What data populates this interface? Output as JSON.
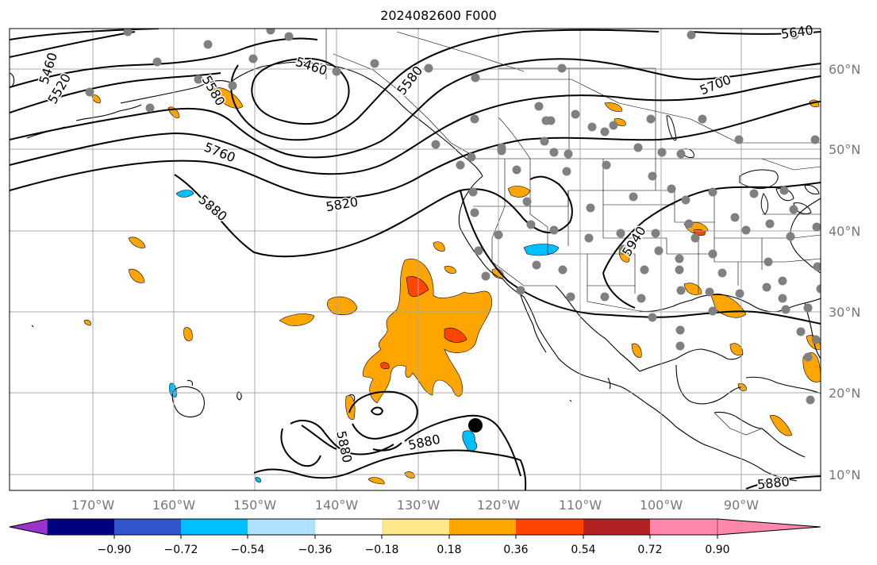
{
  "title": "2024082600 F000",
  "lon_labels": [
    "170°W",
    "160°W",
    "150°W",
    "140°W",
    "130°W",
    "120°W",
    "110°W",
    "100°W",
    "90°W"
  ],
  "lat_labels": [
    "60°N",
    "50°N",
    "40°N",
    "30°N",
    "20°N",
    "10°N"
  ],
  "contour_labels": [
    "5460",
    "5520",
    "5580",
    "5640",
    "5700",
    "5760",
    "5820",
    "5880",
    "5940"
  ],
  "colorbar": {
    "ticks": [
      "−0.90",
      "−0.72",
      "−0.54",
      "−0.36",
      "−0.18",
      "0.18",
      "0.36",
      "0.54",
      "0.72",
      "0.90"
    ],
    "colors": [
      "#9933cc",
      "#000080",
      "#3355cc",
      "#00bfff",
      "#aee1ff",
      "#ffffff",
      "#ffe88a",
      "#ffa500",
      "#ff4500",
      "#b22222",
      "#ff88aa"
    ]
  },
  "colors": {
    "contour": "#000000",
    "grid": "#a8a8a8",
    "station": "#808080",
    "storm_marker": "#000000",
    "positive_field": "#ffa500",
    "negative_field": "#00bfff"
  }
}
